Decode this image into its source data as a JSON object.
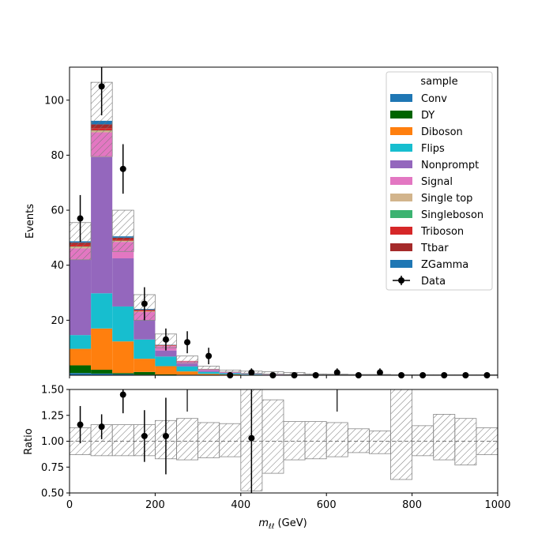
{
  "chart_data": {
    "type": "bar",
    "stacked": true,
    "ylabel": "Events",
    "ratio_ylabel": "Ratio",
    "xlabel_main": "m",
    "xlabel_sub": "ℓℓ",
    "xlabel_unit": " (GeV)",
    "xlim": [
      0,
      1000
    ],
    "ylim": [
      0,
      112
    ],
    "ratio_ylim": [
      0.5,
      1.5
    ],
    "xticks": [
      "0",
      "200",
      "400",
      "600",
      "800",
      "1000"
    ],
    "yticks": [
      "20",
      "40",
      "60",
      "80",
      "100"
    ],
    "ratio_yticks": [
      "0.50",
      "0.75",
      "1.00",
      "1.25",
      "1.50"
    ],
    "bin_edges": [
      0,
      50,
      100,
      150,
      200,
      250,
      300,
      350,
      400,
      450,
      500,
      550,
      600,
      650,
      700,
      750,
      800,
      850,
      900,
      950,
      1000
    ],
    "legend_title": "sample",
    "legend_position": "upper right",
    "series": [
      {
        "name": "Conv",
        "color": "#1f77b4",
        "values": [
          0.8,
          0.6,
          0.4,
          0.2,
          0.1,
          0.1,
          0,
          0,
          0,
          0,
          0,
          0,
          0,
          0,
          0,
          0,
          0,
          0,
          0,
          0
        ]
      },
      {
        "name": "DY",
        "color": "#006400",
        "values": [
          2.8,
          1.4,
          0.4,
          1.0,
          0.2,
          0.1,
          0,
          0,
          0,
          0,
          0,
          0,
          0,
          0,
          0,
          0,
          0,
          0,
          0,
          0
        ]
      },
      {
        "name": "Diboson",
        "color": "#ff7f0e",
        "values": [
          6.0,
          15.0,
          11.5,
          4.8,
          3.0,
          1.2,
          0.5,
          0.3,
          0.2,
          0.1,
          0.1,
          0,
          0,
          0,
          0,
          0,
          0,
          0,
          0,
          0
        ]
      },
      {
        "name": "Flips",
        "color": "#17becf",
        "values": [
          5.0,
          12.8,
          12.7,
          7.0,
          3.5,
          1.8,
          0.7,
          0.4,
          0.2,
          0.1,
          0,
          0,
          0,
          0,
          0,
          0,
          0,
          0,
          0,
          0
        ]
      },
      {
        "name": "Nonprompt",
        "color": "#9467bd",
        "values": [
          27.5,
          49.5,
          17.5,
          7.0,
          2.2,
          1.0,
          0.5,
          0.2,
          0.1,
          0,
          0,
          0,
          0,
          0,
          0,
          0,
          0,
          0,
          0,
          0
        ]
      },
      {
        "name": "Signal",
        "color": "#e377c2",
        "values": [
          4.0,
          9.0,
          6.0,
          3.0,
          1.6,
          0.8,
          0.4,
          0.3,
          0.2,
          0.1,
          0.1,
          0,
          0,
          0,
          0,
          0,
          0,
          0,
          0,
          0
        ]
      },
      {
        "name": "Single top",
        "color": "#d2b48c",
        "values": [
          0.6,
          0.6,
          0.3,
          0.2,
          0.1,
          0,
          0,
          0,
          0,
          0,
          0,
          0,
          0,
          0,
          0,
          0,
          0,
          0,
          0,
          0
        ]
      },
      {
        "name": "Singleboson",
        "color": "#3cb371",
        "values": [
          0.1,
          0.1,
          0.1,
          0,
          0,
          0,
          0,
          0,
          0,
          0,
          0,
          0,
          0,
          0,
          0,
          0,
          0,
          0,
          0,
          0
        ]
      },
      {
        "name": "Triboson",
        "color": "#d62728",
        "values": [
          0.6,
          0.8,
          0.5,
          0.3,
          0.2,
          0.1,
          0.1,
          0,
          0,
          0,
          0,
          0,
          0,
          0,
          0,
          0,
          0,
          0,
          0,
          0
        ]
      },
      {
        "name": "Ttbar",
        "color": "#a52a2a",
        "values": [
          0.8,
          1.4,
          0.6,
          0.3,
          0.1,
          0.1,
          0,
          0,
          0,
          0,
          0,
          0,
          0,
          0,
          0,
          0,
          0,
          0,
          0,
          0
        ]
      },
      {
        "name": "ZGamma",
        "color": "#1f77b4",
        "values": [
          0.5,
          1.3,
          0.5,
          0.3,
          0.1,
          0,
          0,
          0,
          0,
          0,
          0,
          0,
          0,
          0,
          0,
          0,
          0,
          0,
          0,
          0
        ]
      }
    ],
    "uncertainty_band": {
      "up": [
        55.5,
        106.5,
        60.0,
        29.3,
        15.0,
        7.0,
        3.3,
        1.9,
        1.5,
        1.3,
        1.0,
        0.5,
        0.4,
        0.3,
        0.3,
        0.2,
        0.2,
        0.2,
        0.2,
        0.2
      ],
      "down": [
        42.0,
        79.5,
        45.0,
        20.0,
        10.0,
        4.5,
        2.2,
        1.2,
        0.7,
        0.5,
        0.3,
        0.2,
        0.2,
        0.1,
        0.1,
        0.1,
        0.1,
        0.1,
        0.1,
        0.1
      ]
    },
    "data": {
      "name": "Data",
      "x": [
        25,
        75,
        125,
        175,
        225,
        275,
        325,
        375,
        425,
        475,
        525,
        575,
        625,
        675,
        725,
        775,
        825,
        875,
        925,
        975
      ],
      "y": [
        57,
        105,
        75,
        26,
        13,
        12,
        7,
        0,
        1,
        0,
        0,
        0,
        1,
        0,
        1,
        0,
        0,
        0,
        0,
        0
      ],
      "yerr": [
        8.5,
        10.5,
        9.0,
        6.0,
        4.0,
        4.0,
        3.0,
        0,
        1.5,
        0,
        0,
        0,
        1.5,
        0,
        1.5,
        0,
        0,
        0,
        0,
        0
      ]
    },
    "ratio": {
      "x": [
        25,
        75,
        125,
        175,
        225,
        425
      ],
      "y": [
        1.16,
        1.14,
        1.45,
        1.05,
        1.05,
        1.03
      ],
      "yerr": [
        0.18,
        0.12,
        0.18,
        0.25,
        0.37,
        1.0
      ],
      "band_up": [
        1.13,
        1.16,
        1.16,
        1.16,
        1.2,
        1.22,
        1.18,
        1.17,
        1.5,
        1.4,
        1.19,
        1.19,
        1.18,
        1.12,
        1.1,
        1.5,
        1.15,
        1.26,
        1.22,
        1.13
      ],
      "band_down": [
        0.87,
        0.86,
        0.86,
        0.86,
        0.83,
        0.82,
        0.84,
        0.85,
        0.52,
        0.69,
        0.82,
        0.83,
        0.85,
        0.89,
        0.88,
        0.63,
        0.86,
        0.82,
        0.77,
        0.87
      ],
      "offscale_x": [
        275,
        625
      ]
    }
  }
}
